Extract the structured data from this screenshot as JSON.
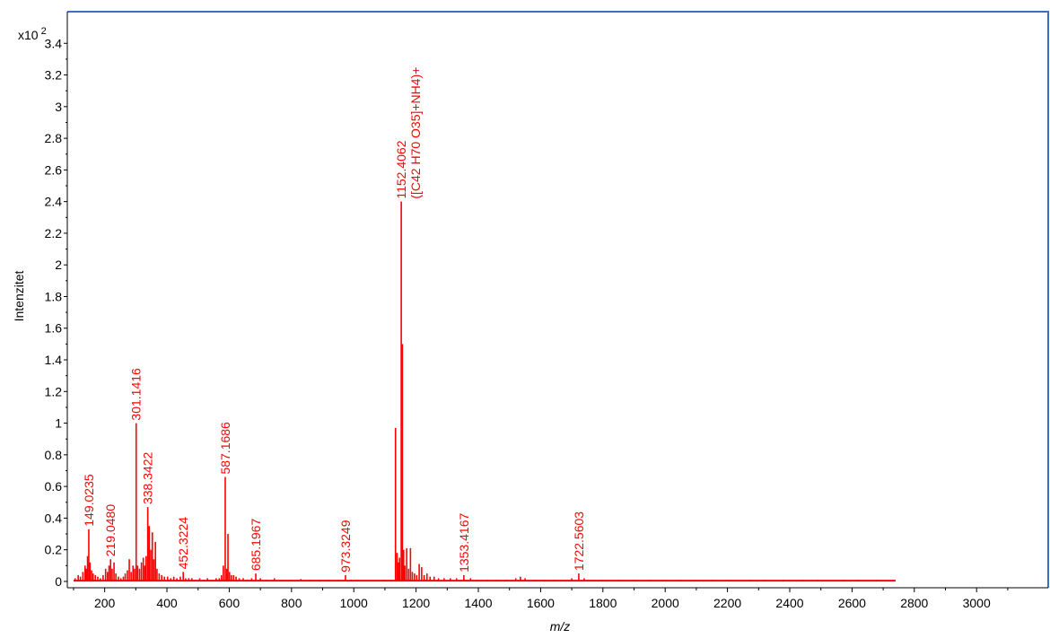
{
  "chart_data": {
    "type": "bar",
    "title": "",
    "xlabel": "m/z",
    "ylabel": "Intenzitet",
    "y_multiplier": "x10",
    "y_multiplier_exp": "2",
    "xlim": [
      80,
      3230
    ],
    "ylim": [
      -0.04,
      3.6
    ],
    "xticks": [
      200,
      400,
      600,
      800,
      1000,
      1200,
      1400,
      1600,
      1800,
      2000,
      2200,
      2400,
      2600,
      2800,
      3000
    ],
    "yticks": [
      0,
      0.2,
      0.4,
      0.6,
      0.8,
      1,
      1.2,
      1.4,
      1.6,
      1.8,
      2,
      2.2,
      2.4,
      2.6,
      2.8,
      3,
      3.2,
      3.4
    ],
    "ytick_labels": [
      "0",
      "0.2",
      "0.4",
      "0.6",
      "0.8",
      "1",
      "1.2",
      "1.4",
      "1.6",
      "1.8",
      "2",
      "2.2",
      "2.4",
      "2.6",
      "2.8",
      "3",
      "3.2",
      "3.4"
    ],
    "grid": false,
    "series_color": "#ff0000",
    "frame_color": "#3a6fc4",
    "peaks": [
      {
        "x": 105,
        "y": 0.02
      },
      {
        "x": 115,
        "y": 0.04
      },
      {
        "x": 122,
        "y": 0.03
      },
      {
        "x": 130,
        "y": 0.06
      },
      {
        "x": 137,
        "y": 0.1
      },
      {
        "x": 141,
        "y": 0.08
      },
      {
        "x": 145,
        "y": 0.16
      },
      {
        "x": 149.0235,
        "y": 0.33
      },
      {
        "x": 153,
        "y": 0.12
      },
      {
        "x": 158,
        "y": 0.07
      },
      {
        "x": 163,
        "y": 0.05
      },
      {
        "x": 170,
        "y": 0.04
      },
      {
        "x": 178,
        "y": 0.03
      },
      {
        "x": 186,
        "y": 0.02
      },
      {
        "x": 195,
        "y": 0.04
      },
      {
        "x": 203,
        "y": 0.08
      },
      {
        "x": 209,
        "y": 0.06
      },
      {
        "x": 214,
        "y": 0.1
      },
      {
        "x": 219.048,
        "y": 0.14
      },
      {
        "x": 224,
        "y": 0.08
      },
      {
        "x": 230,
        "y": 0.12
      },
      {
        "x": 236,
        "y": 0.05
      },
      {
        "x": 244,
        "y": 0.03
      },
      {
        "x": 252,
        "y": 0.02
      },
      {
        "x": 260,
        "y": 0.03
      },
      {
        "x": 266,
        "y": 0.05
      },
      {
        "x": 273,
        "y": 0.07
      },
      {
        "x": 279,
        "y": 0.14
      },
      {
        "x": 285,
        "y": 0.06
      },
      {
        "x": 291,
        "y": 0.1
      },
      {
        "x": 296,
        "y": 0.08
      },
      {
        "x": 301.1416,
        "y": 1.0
      },
      {
        "x": 306,
        "y": 0.1
      },
      {
        "x": 312,
        "y": 0.08
      },
      {
        "x": 318,
        "y": 0.12
      },
      {
        "x": 324,
        "y": 0.15
      },
      {
        "x": 329,
        "y": 0.1
      },
      {
        "x": 333,
        "y": 0.16
      },
      {
        "x": 338.3422,
        "y": 0.47
      },
      {
        "x": 343,
        "y": 0.35
      },
      {
        "x": 348,
        "y": 0.2
      },
      {
        "x": 353,
        "y": 0.31
      },
      {
        "x": 358,
        "y": 0.14
      },
      {
        "x": 363,
        "y": 0.25
      },
      {
        "x": 368,
        "y": 0.08
      },
      {
        "x": 375,
        "y": 0.05
      },
      {
        "x": 383,
        "y": 0.04
      },
      {
        "x": 392,
        "y": 0.03
      },
      {
        "x": 402,
        "y": 0.03
      },
      {
        "x": 412,
        "y": 0.02
      },
      {
        "x": 422,
        "y": 0.03
      },
      {
        "x": 432,
        "y": 0.02
      },
      {
        "x": 443,
        "y": 0.03
      },
      {
        "x": 452.3224,
        "y": 0.06
      },
      {
        "x": 460,
        "y": 0.02
      },
      {
        "x": 470,
        "y": 0.02
      },
      {
        "x": 480,
        "y": 0.02
      },
      {
        "x": 492,
        "y": 0.01
      },
      {
        "x": 505,
        "y": 0.02
      },
      {
        "x": 518,
        "y": 0.01
      },
      {
        "x": 530,
        "y": 0.02
      },
      {
        "x": 545,
        "y": 0.01
      },
      {
        "x": 558,
        "y": 0.02
      },
      {
        "x": 568,
        "y": 0.02
      },
      {
        "x": 575,
        "y": 0.04
      },
      {
        "x": 581,
        "y": 0.1
      },
      {
        "x": 587.1686,
        "y": 0.66
      },
      {
        "x": 592,
        "y": 0.08
      },
      {
        "x": 596,
        "y": 0.3
      },
      {
        "x": 601,
        "y": 0.06
      },
      {
        "x": 607,
        "y": 0.04
      },
      {
        "x": 614,
        "y": 0.04
      },
      {
        "x": 622,
        "y": 0.03
      },
      {
        "x": 632,
        "y": 0.02
      },
      {
        "x": 645,
        "y": 0.02
      },
      {
        "x": 658,
        "y": 0.01
      },
      {
        "x": 672,
        "y": 0.02
      },
      {
        "x": 685.1967,
        "y": 0.05
      },
      {
        "x": 700,
        "y": 0.02
      },
      {
        "x": 720,
        "y": 0.01
      },
      {
        "x": 745,
        "y": 0.02
      },
      {
        "x": 770,
        "y": 0.01
      },
      {
        "x": 800,
        "y": 0.01
      },
      {
        "x": 830,
        "y": 0.015
      },
      {
        "x": 860,
        "y": 0.01
      },
      {
        "x": 890,
        "y": 0.01
      },
      {
        "x": 920,
        "y": 0.01
      },
      {
        "x": 950,
        "y": 0.01
      },
      {
        "x": 973.3249,
        "y": 0.04
      },
      {
        "x": 990,
        "y": 0.01
      },
      {
        "x": 1010,
        "y": 0.01
      },
      {
        "x": 1040,
        "y": 0.005
      },
      {
        "x": 1070,
        "y": 0.005
      },
      {
        "x": 1100,
        "y": 0.01
      },
      {
        "x": 1120,
        "y": 0.01
      },
      {
        "x": 1134,
        "y": 0.97
      },
      {
        "x": 1139,
        "y": 0.18
      },
      {
        "x": 1143,
        "y": 0.12
      },
      {
        "x": 1147,
        "y": 0.15
      },
      {
        "x": 1152.4062,
        "y": 2.4
      },
      {
        "x": 1156,
        "y": 1.5
      },
      {
        "x": 1160,
        "y": 0.2
      },
      {
        "x": 1164,
        "y": 0.1
      },
      {
        "x": 1170,
        "y": 0.21
      },
      {
        "x": 1176,
        "y": 0.08
      },
      {
        "x": 1182,
        "y": 0.21
      },
      {
        "x": 1188,
        "y": 0.06
      },
      {
        "x": 1195,
        "y": 0.05
      },
      {
        "x": 1202,
        "y": 0.04
      },
      {
        "x": 1210,
        "y": 0.11
      },
      {
        "x": 1218,
        "y": 0.09
      },
      {
        "x": 1226,
        "y": 0.04
      },
      {
        "x": 1235,
        "y": 0.05
      },
      {
        "x": 1245,
        "y": 0.03
      },
      {
        "x": 1258,
        "y": 0.03
      },
      {
        "x": 1272,
        "y": 0.02
      },
      {
        "x": 1290,
        "y": 0.02
      },
      {
        "x": 1310,
        "y": 0.02
      },
      {
        "x": 1330,
        "y": 0.02
      },
      {
        "x": 1353.4167,
        "y": 0.04
      },
      {
        "x": 1375,
        "y": 0.02
      },
      {
        "x": 1400,
        "y": 0.01
      },
      {
        "x": 1430,
        "y": 0.01
      },
      {
        "x": 1460,
        "y": 0.01
      },
      {
        "x": 1490,
        "y": 0.01
      },
      {
        "x": 1520,
        "y": 0.02
      },
      {
        "x": 1535,
        "y": 0.03
      },
      {
        "x": 1550,
        "y": 0.02
      },
      {
        "x": 1580,
        "y": 0.01
      },
      {
        "x": 1610,
        "y": 0.01
      },
      {
        "x": 1640,
        "y": 0.01
      },
      {
        "x": 1670,
        "y": 0.01
      },
      {
        "x": 1700,
        "y": 0.02
      },
      {
        "x": 1722.5603,
        "y": 0.05
      },
      {
        "x": 1740,
        "y": 0.02
      },
      {
        "x": 1770,
        "y": 0.01
      },
      {
        "x": 1800,
        "y": 0.01
      },
      {
        "x": 1850,
        "y": 0.01
      },
      {
        "x": 1900,
        "y": 0.01
      },
      {
        "x": 1950,
        "y": 0.01
      },
      {
        "x": 2000,
        "y": 0.01
      },
      {
        "x": 2050,
        "y": 0.01
      },
      {
        "x": 2100,
        "y": 0.01
      },
      {
        "x": 2150,
        "y": 0.01
      },
      {
        "x": 2200,
        "y": 0.01
      },
      {
        "x": 2270,
        "y": 0.01
      },
      {
        "x": 2320,
        "y": 0.01
      },
      {
        "x": 2380,
        "y": 0.01
      },
      {
        "x": 2440,
        "y": 0.01
      },
      {
        "x": 2490,
        "y": 0.01
      },
      {
        "x": 2570,
        "y": 0.01
      },
      {
        "x": 2620,
        "y": 0.01
      },
      {
        "x": 2680,
        "y": 0.01
      },
      {
        "x": 2720,
        "y": 0.005
      }
    ],
    "labels": [
      {
        "x": 149.0235,
        "y": 0.33,
        "text": "149.0235"
      },
      {
        "x": 219.048,
        "y": 0.14,
        "text": "219.0480"
      },
      {
        "x": 301.1416,
        "y": 1.0,
        "text": "301.1416"
      },
      {
        "x": 338.3422,
        "y": 0.47,
        "text": "338.3422"
      },
      {
        "x": 452.3224,
        "y": 0.06,
        "text": "452.3224"
      },
      {
        "x": 587.1686,
        "y": 0.66,
        "text": "587.1686"
      },
      {
        "x": 685.1967,
        "y": 0.05,
        "text": "685.1967"
      },
      {
        "x": 973.3249,
        "y": 0.04,
        "text": "973.3249"
      },
      {
        "x": 1152.4062,
        "y": 2.4,
        "text": "1152.4062",
        "formula": "([C42 H70 O35]+NH4)+"
      },
      {
        "x": 1353.4167,
        "y": 0.04,
        "text": "1353.4167"
      },
      {
        "x": 1722.5603,
        "y": 0.05,
        "text": "1722.5603"
      }
    ]
  }
}
